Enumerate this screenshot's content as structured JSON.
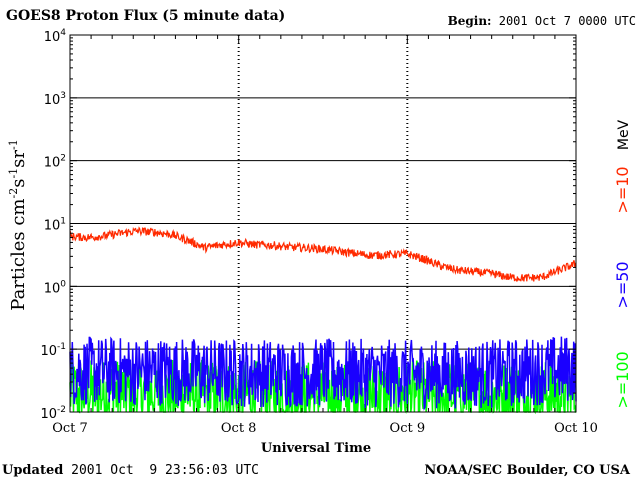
{
  "header": {
    "title": "GOES8 Proton Flux (5 minute data)",
    "begin_label": "Begin:",
    "begin_value": "2001 Oct 7 0000 UTC"
  },
  "footer": {
    "updated_label": "Updated",
    "updated_value": "2001 Oct  9 23:56:03 UTC",
    "source": "NOAA/SEC Boulder, CO USA"
  },
  "legend": {
    "units": "MeV",
    "colors": {
      "ge10": "#ff2a00",
      "ge50": "#1a00ff",
      "ge100": "#00ff00"
    }
  },
  "chart_data": {
    "type": "line",
    "title": "GOES8 Proton Flux (5 minute data)",
    "xlabel": "Universal Time",
    "ylabel": "Particles cm-2s-1sr-1",
    "yscale": "log",
    "ylim": [
      0.01,
      10000
    ],
    "xlim_days": [
      0,
      3
    ],
    "x_ticks": [
      {
        "day": 0,
        "label": "Oct 7"
      },
      {
        "day": 1,
        "label": "Oct 8"
      },
      {
        "day": 2,
        "label": "Oct 9"
      },
      {
        "day": 3,
        "label": "Oct 10"
      }
    ],
    "y_ticks": [
      {
        "exp": -2,
        "base": "10",
        "sup": "-2"
      },
      {
        "exp": -1,
        "base": "10",
        "sup": "-1"
      },
      {
        "exp": 0,
        "base": "10",
        "sup": "0"
      },
      {
        "exp": 1,
        "base": "10",
        "sup": "1"
      },
      {
        "exp": 2,
        "base": "10",
        "sup": "2"
      },
      {
        "exp": 3,
        "base": "10",
        "sup": "3"
      },
      {
        "exp": 4,
        "base": "10",
        "sup": "4"
      }
    ],
    "series": [
      {
        "name": ">=10",
        "color": "#ff2a00",
        "x_days": [
          0,
          0.1,
          0.2,
          0.3,
          0.4,
          0.5,
          0.6,
          0.7,
          0.8,
          0.9,
          1.0,
          1.1,
          1.2,
          1.3,
          1.4,
          1.5,
          1.6,
          1.7,
          1.8,
          1.9,
          2.0,
          2.1,
          2.2,
          2.3,
          2.4,
          2.5,
          2.6,
          2.7,
          2.8,
          2.9,
          3.0
        ],
        "values": [
          6.2,
          6.0,
          6.3,
          7.0,
          7.6,
          7.3,
          6.7,
          5.4,
          4.1,
          4.6,
          5.0,
          4.6,
          4.5,
          4.2,
          4.1,
          3.9,
          3.6,
          3.3,
          3.1,
          3.2,
          3.3,
          2.7,
          2.1,
          1.8,
          1.7,
          1.6,
          1.4,
          1.35,
          1.4,
          1.8,
          2.3
        ],
        "noise": 0.13
      },
      {
        "name": ">=50",
        "color": "#1a00ff",
        "x_days": [
          0,
          0.5,
          1.0,
          1.5,
          2.0,
          2.5,
          3.0
        ],
        "values": [
          0.045,
          0.045,
          0.042,
          0.042,
          0.04,
          0.04,
          0.05
        ],
        "noise": 0.55
      },
      {
        "name": ">=100",
        "color": "#00ff00",
        "x_days": [
          0,
          0.5,
          1.0,
          1.5,
          2.0,
          2.5,
          3.0
        ],
        "values": [
          0.02,
          0.02,
          0.019,
          0.019,
          0.019,
          0.019,
          0.02
        ],
        "noise": 0.55
      }
    ]
  }
}
